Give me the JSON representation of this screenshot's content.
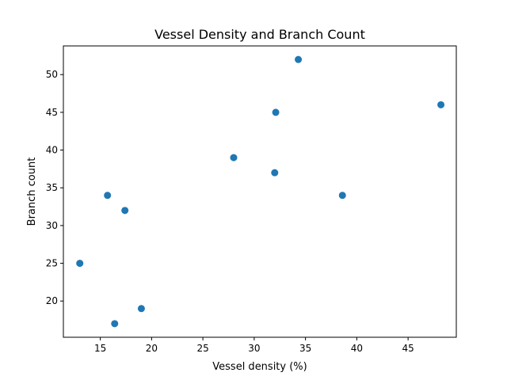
{
  "chart_data": {
    "type": "scatter",
    "title": "Vessel Density and Branch Count",
    "xlabel": "Vessel density (%)",
    "ylabel": "Branch count",
    "xlim": [
      11.4,
      49.7
    ],
    "ylim": [
      15.2,
      53.8
    ],
    "xticks": [
      15,
      20,
      25,
      30,
      35,
      40,
      45
    ],
    "yticks": [
      20,
      25,
      30,
      35,
      40,
      45,
      50
    ],
    "grid": false,
    "marker_color": "#1f77b4",
    "points": [
      {
        "x": 34.3,
        "y": 52
      },
      {
        "x": 48.2,
        "y": 46
      },
      {
        "x": 32.1,
        "y": 45
      },
      {
        "x": 28.0,
        "y": 39
      },
      {
        "x": 32.0,
        "y": 37
      },
      {
        "x": 38.6,
        "y": 34
      },
      {
        "x": 15.7,
        "y": 34
      },
      {
        "x": 17.4,
        "y": 32
      },
      {
        "x": 13.0,
        "y": 25
      },
      {
        "x": 19.0,
        "y": 19
      },
      {
        "x": 16.4,
        "y": 17
      }
    ]
  }
}
